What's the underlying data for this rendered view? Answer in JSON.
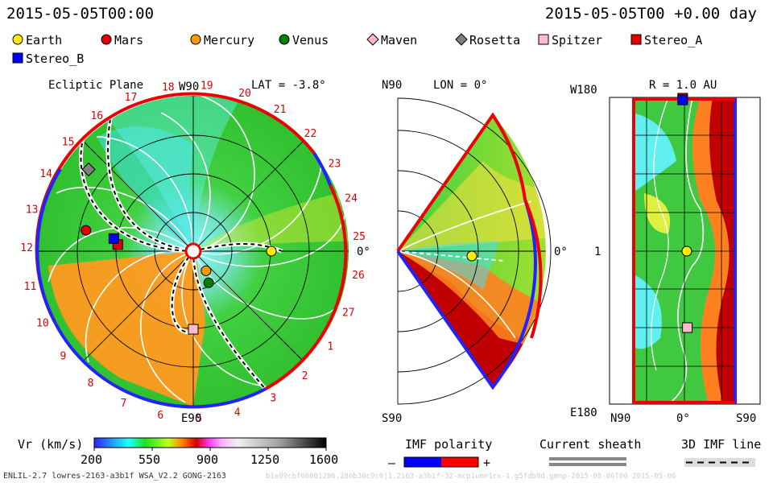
{
  "header": {
    "datetime": "2015-05-05T00:00",
    "offset": "2015-05-05T00 +0.00 day"
  },
  "legend": [
    {
      "name": "Earth",
      "color": "#ffee00",
      "shape": "circle"
    },
    {
      "name": "Mars",
      "color": "#e00000",
      "shape": "circle"
    },
    {
      "name": "Mercury",
      "color": "#ff9900",
      "shape": "circle"
    },
    {
      "name": "Venus",
      "color": "#008000",
      "shape": "circle"
    },
    {
      "name": "Maven",
      "color": "#ffbbbb",
      "shape": "diamond"
    },
    {
      "name": "Rosetta",
      "color": "#808080",
      "shape": "diamond"
    },
    {
      "name": "Spitzer",
      "color": "#ffbbcc",
      "shape": "square"
    },
    {
      "name": "Stereo_A",
      "color": "#e00000",
      "shape": "square"
    },
    {
      "name": "Stereo_B",
      "color": "#0000ff",
      "shape": "square"
    }
  ],
  "chart_data": [
    {
      "type": "heatmap",
      "title": "Ecliptic Plane",
      "subtitle": "LAT = -3.8°",
      "top_label": "W90",
      "bottom_label": "E90",
      "right_label": "0°",
      "sector_ticks": [
        "20",
        "21",
        "22",
        "23",
        "24",
        "25",
        "26",
        "27",
        "1",
        "2",
        "3",
        "4",
        "5",
        "6",
        "7",
        "8",
        "9",
        "10",
        "11",
        "12",
        "13",
        "14",
        "15",
        "16",
        "17",
        "18",
        "19"
      ],
      "bodies": [
        {
          "name": "Earth",
          "angle_deg": 0,
          "r_au": 1.0
        },
        {
          "name": "Mercury",
          "angle_deg": -57,
          "r_au": 0.3
        },
        {
          "name": "Venus",
          "angle_deg": -64,
          "r_au": 0.45
        },
        {
          "name": "Mars",
          "angle_deg": 169,
          "r_au": 1.4
        },
        {
          "name": "Spitzer",
          "angle_deg": -90,
          "r_au": 1.0
        },
        {
          "name": "Stereo_A",
          "angle_deg": 175,
          "r_au": 0.97
        },
        {
          "name": "Stereo_B",
          "angle_deg": 171,
          "r_au": 1.03
        },
        {
          "name": "Rosetta",
          "angle_deg": 142,
          "r_au": 1.7
        }
      ]
    },
    {
      "type": "heatmap",
      "title": "LON = 0°",
      "top_label": "N90",
      "bottom_label": "S90",
      "right_label": "0°",
      "bodies": [
        {
          "name": "Earth",
          "angle_deg": 0,
          "r_au": 1.0
        }
      ]
    },
    {
      "type": "heatmap",
      "title": "R = 1.0 AU",
      "y_top": "W180",
      "y_mid": "1",
      "y_bottom": "E180",
      "x_labels": [
        "N90",
        "0°",
        "S90"
      ],
      "bodies": [
        {
          "name": "Stereo_A",
          "lat": 3,
          "lon": 180
        },
        {
          "name": "Stereo_B",
          "lat": 3,
          "lon": 178
        },
        {
          "name": "Earth",
          "lat": -4,
          "lon": 0
        },
        {
          "name": "Spitzer",
          "lat": -5,
          "lon": -90
        }
      ]
    }
  ],
  "colorbar": {
    "label": "Vr (km/s)",
    "ticks": [
      "200",
      "550",
      "900",
      "1250",
      "1600"
    ],
    "min": 200,
    "max": 1600
  },
  "imf": {
    "label": "IMF polarity",
    "minus": "–",
    "plus": "+",
    "neg_color": "#0000ff",
    "pos_color": "#ff0000"
  },
  "sheath": {
    "label": "Current sheath"
  },
  "imf3d": {
    "label": "3D IMF line"
  },
  "footer": {
    "model": "ENLIL-2.7 lowres-2163-a3b1f WSA_V2.2 GONG-2163",
    "watermark": "b1e09cbf06001206,286b36c9c0|1.2163-a3b1f-32-mcp1umn1cs-1.g5fdb8d.gmnp-2015-05-06T00 2015-05-06"
  }
}
